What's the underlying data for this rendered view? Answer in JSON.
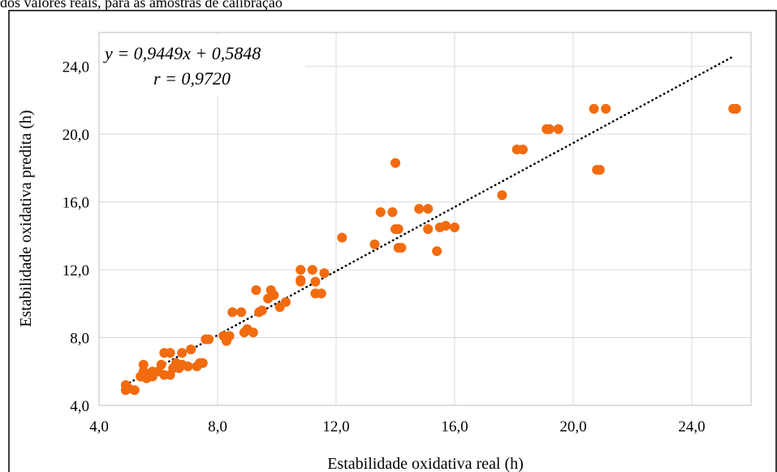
{
  "caption": "dos valores reais, para as amostras de calibração",
  "chart_data": {
    "type": "scatter",
    "xlabel": "Estabilidade oxidativa real (h)",
    "ylabel": "Estabilidade oxidativa predita (h)",
    "xlim": [
      4.0,
      26.0
    ],
    "ylim": [
      4.0,
      26.0
    ],
    "xticks": [
      "4,0",
      "8,0",
      "12,0",
      "16,0",
      "20,0",
      "24,0"
    ],
    "yticks": [
      "4,0",
      "8,0",
      "12,0",
      "16,0",
      "20,0",
      "24,0"
    ],
    "grid": "horizontal and vertical",
    "marker_color": "#f26b0f",
    "trendline_color": "#000000",
    "annotations": [
      "y = 0,9449x + 0,5848",
      "r = 0,9720"
    ],
    "trendline": {
      "slope": 0.9449,
      "intercept": 0.5848,
      "x_range": [
        4.9,
        25.4
      ]
    },
    "points": [
      [
        4.9,
        5.2
      ],
      [
        4.9,
        4.9
      ],
      [
        5.0,
        5.0
      ],
      [
        5.2,
        4.9
      ],
      [
        5.4,
        5.7
      ],
      [
        5.5,
        6.4
      ],
      [
        5.5,
        6.0
      ],
      [
        5.6,
        5.6
      ],
      [
        5.7,
        5.8
      ],
      [
        5.8,
        6.0
      ],
      [
        5.8,
        5.7
      ],
      [
        6.0,
        6.0
      ],
      [
        6.1,
        6.4
      ],
      [
        6.2,
        7.1
      ],
      [
        6.2,
        5.8
      ],
      [
        6.4,
        7.1
      ],
      [
        6.4,
        5.8
      ],
      [
        6.5,
        6.2
      ],
      [
        6.6,
        6.5
      ],
      [
        6.7,
        6.2
      ],
      [
        6.8,
        6.4
      ],
      [
        6.8,
        7.1
      ],
      [
        7.0,
        6.3
      ],
      [
        7.1,
        7.3
      ],
      [
        7.3,
        6.3
      ],
      [
        7.4,
        6.5
      ],
      [
        7.5,
        6.5
      ],
      [
        7.6,
        7.9
      ],
      [
        7.7,
        7.9
      ],
      [
        8.2,
        8.1
      ],
      [
        8.3,
        7.8
      ],
      [
        8.4,
        8.1
      ],
      [
        8.5,
        9.5
      ],
      [
        8.8,
        9.5
      ],
      [
        8.9,
        8.3
      ],
      [
        9.0,
        8.5
      ],
      [
        9.2,
        8.3
      ],
      [
        9.3,
        10.8
      ],
      [
        9.4,
        9.5
      ],
      [
        9.5,
        9.6
      ],
      [
        9.7,
        10.3
      ],
      [
        9.8,
        10.8
      ],
      [
        9.9,
        10.5
      ],
      [
        10.1,
        9.8
      ],
      [
        10.3,
        10.1
      ],
      [
        10.8,
        12.0
      ],
      [
        10.8,
        11.4
      ],
      [
        10.8,
        11.3
      ],
      [
        11.2,
        12.0
      ],
      [
        11.3,
        10.6
      ],
      [
        11.3,
        11.3
      ],
      [
        11.5,
        10.6
      ],
      [
        11.6,
        11.8
      ],
      [
        12.2,
        13.9
      ],
      [
        13.3,
        13.5
      ],
      [
        13.5,
        15.4
      ],
      [
        13.9,
        15.4
      ],
      [
        14.0,
        14.4
      ],
      [
        14.0,
        18.3
      ],
      [
        14.1,
        14.4
      ],
      [
        14.1,
        13.3
      ],
      [
        14.2,
        13.3
      ],
      [
        14.8,
        15.6
      ],
      [
        15.1,
        14.4
      ],
      [
        15.1,
        15.6
      ],
      [
        15.4,
        13.1
      ],
      [
        15.5,
        14.5
      ],
      [
        15.7,
        14.6
      ],
      [
        16.0,
        14.5
      ],
      [
        17.6,
        16.4
      ],
      [
        18.1,
        19.1
      ],
      [
        18.3,
        19.1
      ],
      [
        19.1,
        20.3
      ],
      [
        19.2,
        20.3
      ],
      [
        19.5,
        20.3
      ],
      [
        20.7,
        21.5
      ],
      [
        20.8,
        17.9
      ],
      [
        20.9,
        17.9
      ],
      [
        21.1,
        21.5
      ],
      [
        25.4,
        21.5
      ],
      [
        25.5,
        21.5
      ]
    ]
  }
}
